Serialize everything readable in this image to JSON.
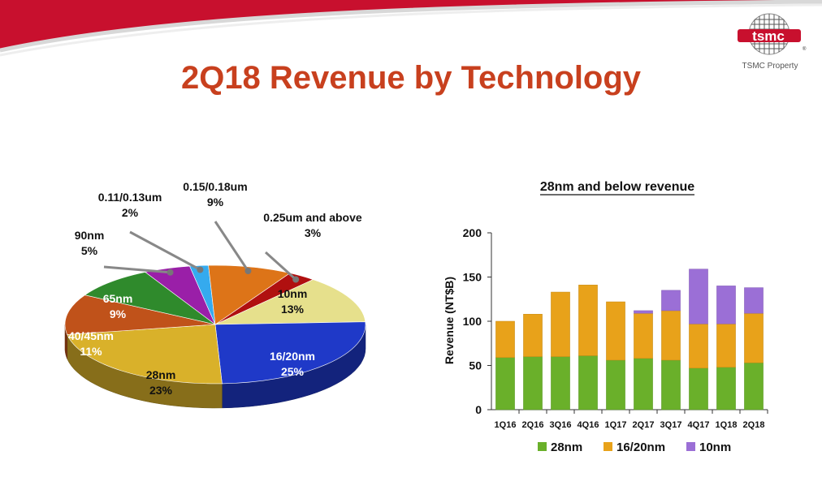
{
  "header": {
    "title": "2Q18 Revenue by Technology",
    "logo_text": "tsmc",
    "logo_trademark": "®",
    "logo_caption": "TSMC Property"
  },
  "colors": {
    "title": "#c8401e",
    "brand_red": "#c8102e"
  },
  "chart_data": [
    {
      "type": "pie",
      "title": "",
      "slices": [
        {
          "label": "0.25um and above",
          "pct": "3%",
          "value": 3,
          "color": "#b01010"
        },
        {
          "label": "10nm",
          "pct": "13%",
          "value": 13,
          "color": "#e6e08c"
        },
        {
          "label": "16/20nm",
          "pct": "25%",
          "value": 25,
          "color": "#1f39c8"
        },
        {
          "label": "28nm",
          "pct": "23%",
          "value": 23,
          "color": "#d9b12a"
        },
        {
          "label": "40/45nm",
          "pct": "11%",
          "value": 11,
          "color": "#c0521a"
        },
        {
          "label": "65nm",
          "pct": "9%",
          "value": 9,
          "color": "#2f8a2c"
        },
        {
          "label": "90nm",
          "pct": "5%",
          "value": 5,
          "color": "#9a1fa8"
        },
        {
          "label": "0.11/0.13um",
          "pct": "2%",
          "value": 2,
          "color": "#35aaee"
        },
        {
          "label": "0.15/0.18um",
          "pct": "9%",
          "value": 9,
          "color": "#dd7418"
        }
      ]
    },
    {
      "type": "bar",
      "stacked": true,
      "title": "28nm and below revenue",
      "xlabel": "",
      "ylabel": "Revenue (NT$B)",
      "ylim": [
        0,
        200
      ],
      "yticks": [
        0,
        50,
        100,
        150,
        200
      ],
      "categories": [
        "1Q16",
        "2Q16",
        "3Q16",
        "4Q16",
        "1Q17",
        "2Q17",
        "3Q17",
        "4Q17",
        "1Q18",
        "2Q18"
      ],
      "series": [
        {
          "name": "28nm",
          "color": "#6ab02a",
          "values": [
            59,
            60,
            60,
            61,
            56,
            58,
            56,
            47,
            48,
            53
          ]
        },
        {
          "name": "16/20nm",
          "color": "#e8a21a",
          "values": [
            41,
            48,
            73,
            80,
            66,
            51,
            56,
            50,
            49,
            56
          ]
        },
        {
          "name": "10nm",
          "color": "#9b6fd6",
          "values": [
            0,
            0,
            0,
            0,
            0,
            3,
            23,
            62,
            43,
            29
          ]
        }
      ],
      "legend": "bottom"
    }
  ]
}
